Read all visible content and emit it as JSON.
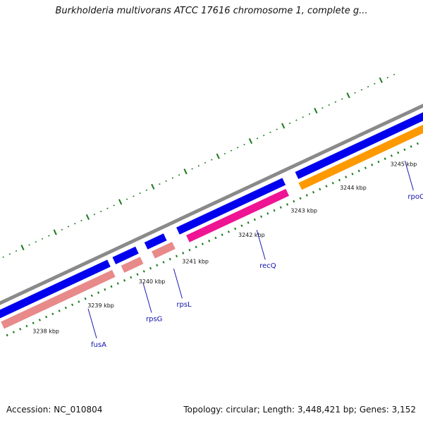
{
  "header": {
    "title": "Burkholderia multivorans ATCC 17616 chromosome 1, complete g..."
  },
  "footer": {
    "accession": "Accession: NC_010804",
    "summary": "Topology: circular; Length: 3,448,421 bp; Genes: 3,152"
  },
  "colors": {
    "backbone": "#8a8a8a",
    "cds_forward": "#0000ee",
    "gene_rna_pink": "#e88a8a",
    "gene_magenta": "#ee1493",
    "gene_orange": "#ff9900",
    "tick_mark": "#1a7a1a",
    "label_line": "#1a1ab0"
  },
  "scale_ticks": [
    "3238 kbp",
    "3239 kbp",
    "3240 kbp",
    "3241 kbp",
    "3242 kbp",
    "3243 kbp",
    "3244 kbp",
    "3245 kbp"
  ],
  "genes": [
    {
      "name": "fusA",
      "lane": "pink"
    },
    {
      "name": "rpsG",
      "lane": "pink"
    },
    {
      "name": "rpsL",
      "lane": "pink"
    },
    {
      "name": "recQ",
      "lane": "magenta"
    },
    {
      "name": "rpoC",
      "lane": "orange"
    }
  ]
}
